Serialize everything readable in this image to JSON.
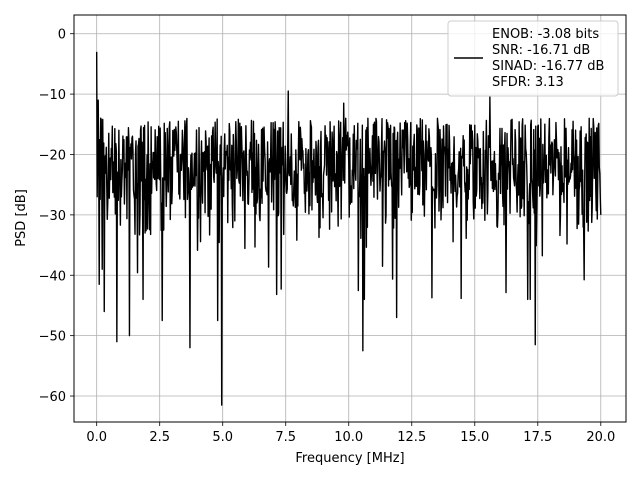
{
  "chart_data": {
    "type": "line",
    "xlabel": "Frequency [MHz]",
    "ylabel": "PSD [dB]",
    "xlim": [
      -0.9,
      21.0
    ],
    "ylim": [
      -64.3,
      3.1
    ],
    "xticks": [
      0.0,
      2.5,
      5.0,
      7.5,
      10.0,
      12.5,
      15.0,
      17.5,
      20.0
    ],
    "xtick_labels": [
      "0.0",
      "2.5",
      "5.0",
      "7.5",
      "10.0",
      "12.5",
      "15.0",
      "17.5",
      "20.0"
    ],
    "yticks": [
      0,
      -10,
      -20,
      -30,
      -40,
      -50,
      -60
    ],
    "ytick_labels": [
      "0",
      "−10",
      "−20",
      "−30",
      "−40",
      "−50",
      "−60"
    ],
    "grid": true,
    "legend_placement": "top-right",
    "series_color": "#000000",
    "series": [
      {
        "description": "noise-like PSD trace, baseline about -22 dB, fluctuating roughly between -35 dB and -14 dB across 0-20 MHz",
        "x": [
          0.0,
          0.02,
          0.05,
          0.1,
          0.15,
          0.22,
          0.3,
          0.8,
          1.3,
          2.6,
          3.7,
          4.8,
          4.95,
          7.6,
          9.8,
          10.55,
          11.9,
          15.6,
          17.4,
          18.9,
          20.0
        ],
        "y": [
          -3.0,
          -27.0,
          -11.0,
          -41.5,
          -14.0,
          -39.0,
          -46.0,
          -51.0,
          -50.0,
          -47.5,
          -52.0,
          -47.5,
          -61.5,
          -9.5,
          -11.5,
          -52.5,
          -47.0,
          -10.5,
          -51.5,
          -14.5,
          -30.0
        ]
      }
    ],
    "legend_lines": [
      "ENOB: -3.08 bits",
      "SNR: -16.71 dB",
      "SINAD: -16.77 dB",
      "SFDR: 3.13"
    ]
  }
}
